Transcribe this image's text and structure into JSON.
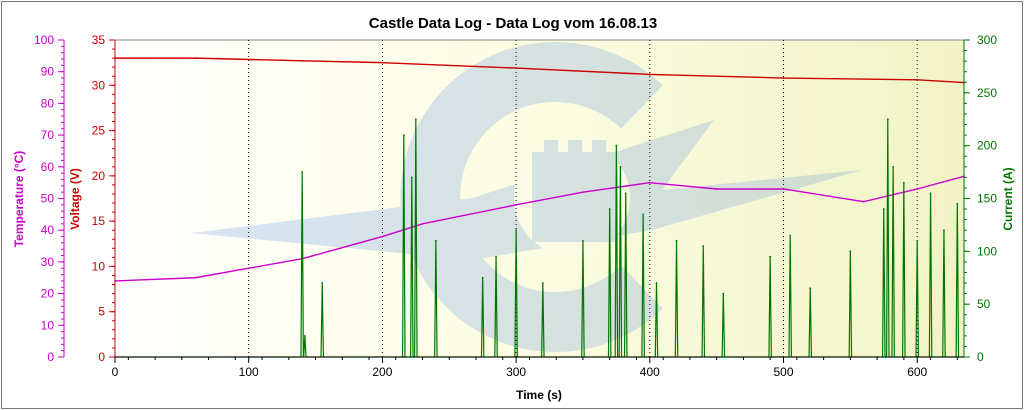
{
  "chart_data": {
    "type": "line",
    "title": "Castle Data Log - Data Log vom 16.08.13",
    "xlabel": "Time (s)",
    "xlim": [
      0,
      635
    ],
    "x_ticks": [
      "0",
      "100",
      "200",
      "300",
      "400",
      "500",
      "600"
    ],
    "grid": "vertical dotted lines at 100 s intervals",
    "watermark": "Castle Creations logo",
    "axes": {
      "temperature": {
        "label": "Temperature (°C)",
        "side": "left-outer",
        "range": [
          0,
          100
        ],
        "color": "#cc00cc",
        "ticks": [
          "0",
          "10",
          "20",
          "30",
          "40",
          "50",
          "60",
          "70",
          "80",
          "90",
          "100"
        ]
      },
      "voltage": {
        "label": "Voltage (V)",
        "side": "left-inner",
        "range": [
          0,
          35
        ],
        "color": "#cc0000",
        "ticks": [
          "0",
          "5",
          "10",
          "15",
          "20",
          "25",
          "30",
          "35"
        ]
      },
      "current": {
        "label": "Current (A)",
        "side": "right",
        "range": [
          0,
          300
        ],
        "color": "#007700",
        "ticks": [
          "0",
          "50",
          "100",
          "150",
          "200",
          "250",
          "300"
        ]
      }
    },
    "series": [
      {
        "name": "Voltage",
        "axis": "voltage",
        "color": "#cc0000",
        "x": [
          0,
          60,
          140,
          200,
          300,
          400,
          500,
          600,
          635
        ],
        "y": [
          33.0,
          33.0,
          32.7,
          32.5,
          31.9,
          31.2,
          30.8,
          30.6,
          30.3
        ]
      },
      {
        "name": "Temperature",
        "axis": "temperature",
        "color": "#cc00cc",
        "x": [
          0,
          60,
          100,
          140,
          200,
          230,
          300,
          350,
          400,
          450,
          500,
          560,
          600,
          635
        ],
        "y": [
          24,
          25,
          28,
          31,
          38,
          42,
          48,
          52,
          55,
          53,
          53,
          49,
          53,
          57
        ]
      },
      {
        "name": "Current",
        "axis": "current",
        "color": "#007700",
        "x": [
          140,
          142,
          155,
          215,
          216,
          222,
          225,
          240,
          275,
          285,
          300,
          320,
          350,
          370,
          375,
          378,
          382,
          395,
          405,
          420,
          440,
          455,
          490,
          505,
          520,
          550,
          575,
          578,
          582,
          590,
          600,
          610,
          620,
          630
        ],
        "y": [
          175,
          20,
          70,
          0,
          210,
          170,
          225,
          110,
          75,
          95,
          120,
          70,
          110,
          140,
          200,
          180,
          155,
          135,
          70,
          110,
          105,
          60,
          95,
          115,
          65,
          100,
          140,
          225,
          180,
          165,
          110,
          155,
          120,
          145
        ]
      }
    ]
  }
}
